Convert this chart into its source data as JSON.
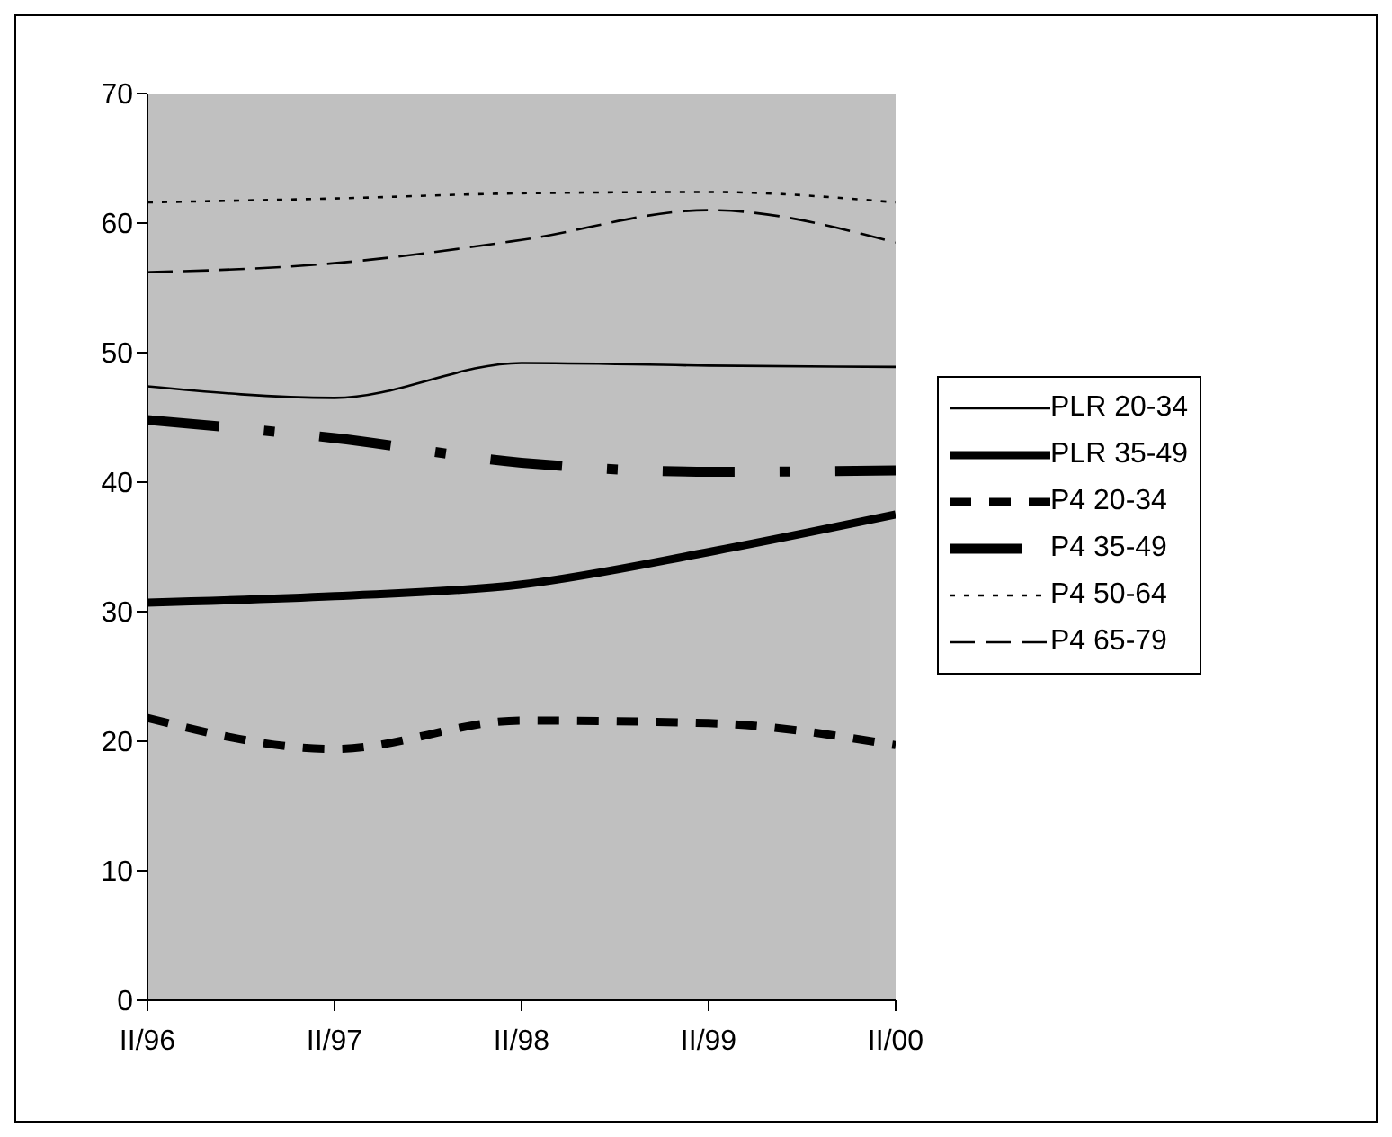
{
  "chart_data": {
    "type": "line",
    "categories": [
      "II/96",
      "II/97",
      "II/98",
      "II/99",
      "II/00"
    ],
    "series": [
      {
        "name": "PLR 20-34",
        "color": "#000000",
        "line_style": "solid",
        "values": [
          47.4,
          46.5,
          49.2,
          49.0,
          48.9
        ]
      },
      {
        "name": "PLR 35-49",
        "color": "#000000",
        "line_style": "solid",
        "values": [
          30.7,
          31.2,
          32.1,
          34.6,
          37.5
        ]
      },
      {
        "name": "P4 20-34",
        "color": "#000000",
        "line_style": "dashed",
        "values": [
          21.8,
          19.4,
          21.6,
          21.4,
          19.7
        ]
      },
      {
        "name": "P4 35-49",
        "color": "#000000",
        "line_style": "dashdot",
        "values": [
          44.8,
          43.4,
          41.5,
          40.8,
          40.9
        ]
      },
      {
        "name": "P4 50-64",
        "color": "#000000",
        "line_style": "dotted",
        "values": [
          61.6,
          61.9,
          62.3,
          62.4,
          61.6
        ]
      },
      {
        "name": "P4 65-79",
        "color": "#000000",
        "line_style": "dashed",
        "values": [
          56.2,
          56.9,
          58.7,
          61.0,
          58.5
        ]
      }
    ],
    "ylim": [
      0,
      70
    ],
    "yticks": [
      0,
      10,
      20,
      30,
      40,
      50,
      60,
      70
    ],
    "grid": false,
    "legend": "right",
    "marker": "none"
  }
}
